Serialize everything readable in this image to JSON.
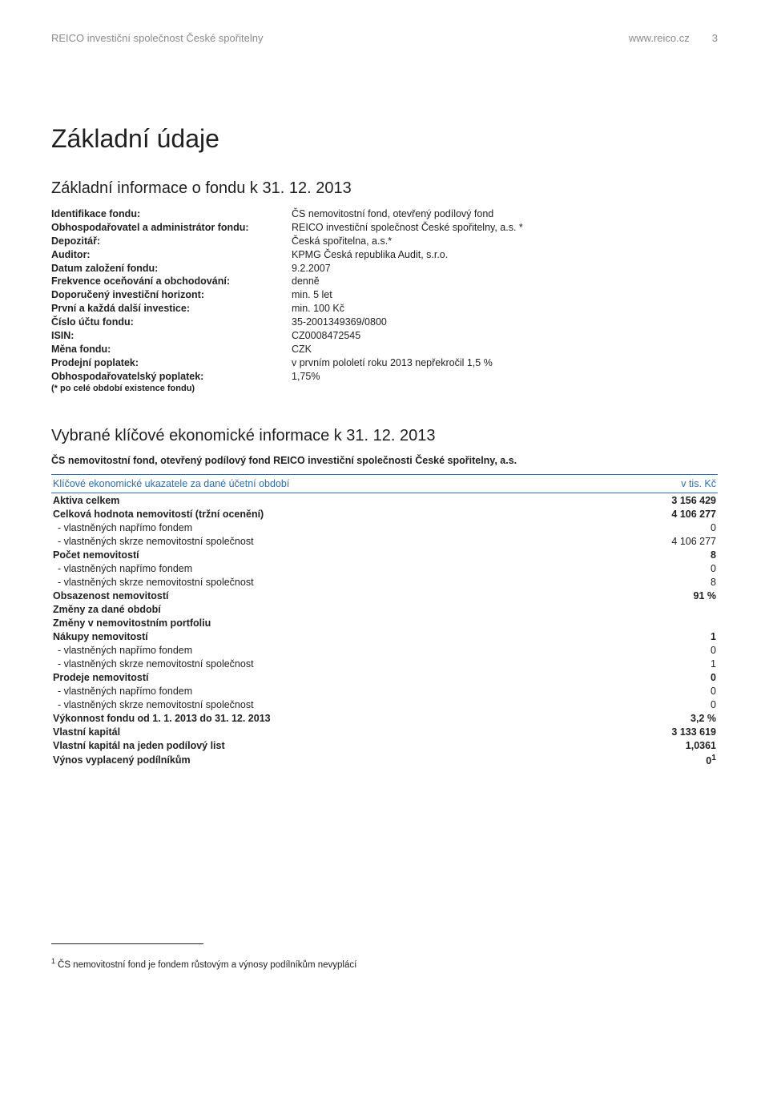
{
  "colors": {
    "text": "#212121",
    "muted": "#8a8a8a",
    "accent": "#2b6fb3",
    "background": "#ffffff"
  },
  "typography": {
    "body_fontsize": 12.5,
    "h1_fontsize": 32,
    "h2_fontsize": 20,
    "footnote_fontsize": 11.5
  },
  "header": {
    "left": "REICO investiční společnost České spořitelny",
    "url": "www.reico.cz",
    "page": "3"
  },
  "title": "Základní údaje",
  "section1": {
    "heading": "Základní informace o fondu k 31. 12. 2013",
    "rows": [
      {
        "label": "Identifikace fondu:",
        "value": "ČS nemovitostní fond, otevřený podílový fond"
      },
      {
        "label": "Obhospodařovatel a administrátor fondu:",
        "value": "REICO investiční společnost České spořitelny, a.s. *"
      },
      {
        "label": "Depozitář:",
        "value": "Česká spořitelna, a.s.*"
      },
      {
        "label": "Auditor:",
        "value": "KPMG Česká republika Audit, s.r.o."
      },
      {
        "label": "Datum založení fondu:",
        "value": "9.2.2007"
      },
      {
        "label": "Frekvence oceňování a obchodování:",
        "value": "denně"
      },
      {
        "label": "Doporučený investiční horizont:",
        "value": "min. 5 let"
      },
      {
        "label": "První a každá další investice:",
        "value": "min. 100 Kč"
      },
      {
        "label": "Číslo účtu fondu:",
        "value": "35-2001349369/0800"
      },
      {
        "label": "ISIN:",
        "value": "CZ0008472545"
      },
      {
        "label": "Měna fondu:",
        "value": "CZK"
      },
      {
        "label": "Prodejní poplatek:",
        "value": "v prvním pololetí roku 2013 nepřekročil 1,5 %"
      },
      {
        "label": "Obhospodařovatelský poplatek:",
        "value": "1,75%"
      }
    ],
    "footnote_line": "(* po celé období existence fondu)"
  },
  "section2": {
    "heading": "Vybrané klíčové ekonomické informace k 31. 12. 2013",
    "subheading": "ČS nemovitostní fond, otevřený podílový fond REICO investiční společnosti České spořitelny, a.s.",
    "table": {
      "type": "table",
      "header_left": "Klíčové ekonomické ukazatele za dané účetní období",
      "header_right": "v tis. Kč",
      "header_color": "#2b6fb3",
      "border_color": "#2b6fb3",
      "columns": [
        "label",
        "value"
      ],
      "column_align": [
        "left",
        "right"
      ],
      "rows": [
        {
          "label": "Aktiva celkem",
          "value": "3 156 429",
          "bold": true
        },
        {
          "label": "Celková hodnota nemovitostí (tržní ocenění)",
          "value": "4 106 277",
          "bold": true
        },
        {
          "label": " - vlastněných napřímo fondem",
          "value": "0",
          "indent": true
        },
        {
          "label": " - vlastněných skrze nemovitostní společnost",
          "value": "4 106 277",
          "indent": true
        },
        {
          "label": "Počet nemovitostí",
          "value": "8",
          "bold": true
        },
        {
          "label": " - vlastněných napřímo fondem",
          "value": "0",
          "indent": true
        },
        {
          "label": " - vlastněných skrze nemovitostní společnost",
          "value": "8",
          "indent": true
        },
        {
          "label": "Obsazenost nemovitostí",
          "value": "91 %",
          "bold": true
        },
        {
          "label": "Změny za dané období",
          "value": "",
          "bold": true
        },
        {
          "label": "Změny v nemovitostním portfoliu",
          "value": "",
          "bold": true
        },
        {
          "label": "Nákupy nemovitostí",
          "value": "1",
          "bold": true
        },
        {
          "label": " - vlastněných napřímo fondem",
          "value": "0",
          "indent": true
        },
        {
          "label": " - vlastněných skrze nemovitostní společnost",
          "value": "1",
          "indent": true
        },
        {
          "label": "Prodeje nemovitostí",
          "value": "0",
          "bold": true
        },
        {
          "label": " - vlastněných napřímo fondem",
          "value": "0",
          "indent": true
        },
        {
          "label": " - vlastněných skrze nemovitostní společnost",
          "value": "0",
          "indent": true
        },
        {
          "label": "Výkonnost fondu od 1. 1. 2013 do 31. 12. 2013",
          "value": "3,2 %",
          "bold": true
        },
        {
          "label": "Vlastní kapitál",
          "value": "3 133 619",
          "bold": true
        },
        {
          "label": "Vlastní kapitál na jeden podílový list",
          "value": "1,0361",
          "bold": true
        },
        {
          "label": "Výnos vyplacený podílníkům",
          "value": "0",
          "bold": true,
          "sup": "1"
        }
      ]
    }
  },
  "page_footnote": {
    "marker": "1",
    "text": "ČS nemovitostní fond je fondem růstovým a výnosy podílníkům nevyplácí"
  }
}
